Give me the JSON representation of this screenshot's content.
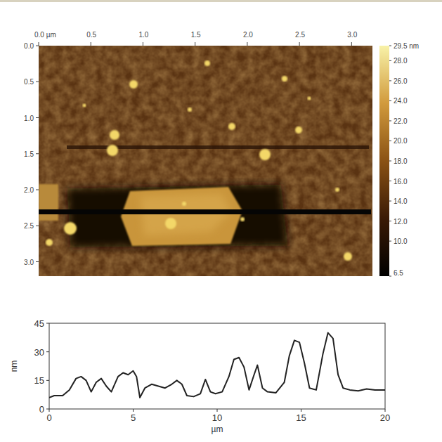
{
  "chart_data": [
    {
      "type": "image",
      "xlim": [
        0,
        3.2
      ],
      "ylim": [
        0,
        3.2
      ],
      "xticks": [
        {
          "value": 0,
          "label": "0.0 µm"
        },
        0.5,
        {
          "value": 1,
          "label": "1.0"
        },
        1.5,
        {
          "value": 2,
          "label": "2.0"
        },
        2.5,
        {
          "value": 3,
          "label": "3.0"
        }
      ],
      "yticks": [
        {
          "value": 0,
          "label": "0.0"
        },
        0.5,
        {
          "value": 1,
          "label": "1.0"
        },
        1.5,
        {
          "value": 2,
          "label": "2.0"
        },
        2.5,
        {
          "value": 3,
          "label": "3.0"
        }
      ],
      "color_range": [
        6.5,
        29.5
      ],
      "color_ticks": [
        {
          "value": 29.5,
          "label": "29.5 nm"
        },
        {
          "value": 28,
          "label": "28.0"
        },
        {
          "value": 26,
          "label": "26.0"
        },
        {
          "value": 24,
          "label": "24.0"
        },
        {
          "value": 22,
          "label": "22.0"
        },
        {
          "value": 20,
          "label": "20.0"
        },
        {
          "value": 18,
          "label": "18.0"
        },
        {
          "value": 16,
          "label": "16.0"
        },
        {
          "value": 14,
          "label": "14.0"
        },
        {
          "value": 12,
          "label": "12.0"
        },
        {
          "value": 10,
          "label": "10.0"
        },
        6.5
      ]
    },
    {
      "type": "line",
      "x_label": "µm",
      "y_label": "nm",
      "x": [
        0,
        0.3,
        0.8,
        1.2,
        1.6,
        1.9,
        2.2,
        2.5,
        2.8,
        3.1,
        3.4,
        3.7,
        4.1,
        4.4,
        4.7,
        5.0,
        5.2,
        5.4,
        5.7,
        6.1,
        6.5,
        6.9,
        7.3,
        7.6,
        7.9,
        8.2,
        8.6,
        9.0,
        9.3,
        9.6,
        9.9,
        10.3,
        10.7,
        11.0,
        11.3,
        11.6,
        11.9,
        12.2,
        12.4,
        12.7,
        13.0,
        13.5,
        14.0,
        14.3,
        14.6,
        14.9,
        15.2,
        15.5,
        15.9,
        16.3,
        16.6,
        16.9,
        17.2,
        17.5,
        17.9,
        18.4,
        18.9,
        19.4,
        20.0
      ],
      "values": [
        6,
        7,
        7,
        10,
        16,
        17,
        15,
        9,
        14,
        16,
        12,
        9,
        17,
        19,
        18,
        20,
        17,
        6,
        11,
        13,
        12,
        11,
        13,
        15,
        13,
        7,
        6.5,
        8,
        15.5,
        9,
        8,
        9,
        17,
        26,
        27,
        22,
        10,
        18,
        23,
        11,
        9,
        8.5,
        14,
        28,
        36,
        35,
        24,
        11,
        10,
        29,
        40,
        37,
        18,
        11,
        10,
        9.5,
        10.5,
        10,
        10
      ],
      "xlim": [
        0,
        20
      ],
      "ylim": [
        0,
        45
      ],
      "xticks": [
        0,
        5,
        10,
        15,
        20
      ],
      "yticks": [
        0,
        15,
        30,
        45
      ],
      "color": "#222222"
    }
  ]
}
